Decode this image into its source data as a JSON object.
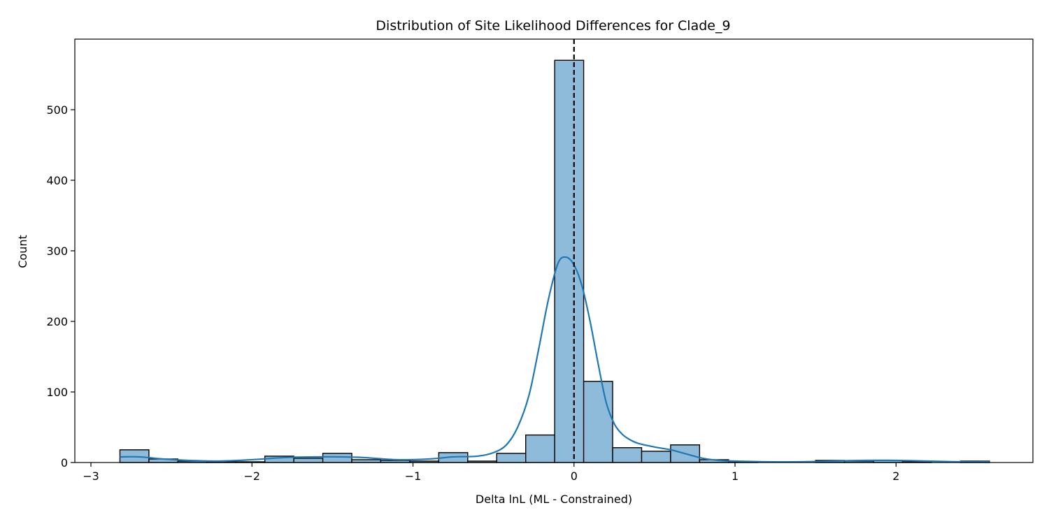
{
  "chart_data": {
    "type": "histogram",
    "title": "Distribution of Site Likelihood Differences for Clade_9",
    "xlabel": "Delta lnL (ML - Constrained)",
    "ylabel": "Count",
    "xlim": [
      -3.1,
      2.85
    ],
    "ylim": [
      0,
      600
    ],
    "xticks": [
      -3,
      -2,
      -1,
      0,
      1,
      2
    ],
    "xtick_labels": [
      "−3",
      "−2",
      "−1",
      "0",
      "1",
      "2"
    ],
    "yticks": [
      0,
      100,
      200,
      300,
      400,
      500
    ],
    "yticks_labels": [
      "0",
      "100",
      "200",
      "300",
      "400",
      "500"
    ],
    "grid": false,
    "bar_color": "#8fbbda",
    "bar_edge_color": "#000000",
    "kde_color": "#1f77b4",
    "reference_line": {
      "x": 0,
      "style": "dashed",
      "color": "#000000"
    },
    "bins": [
      {
        "x0": -2.82,
        "x1": -2.64,
        "count": 18
      },
      {
        "x0": -2.64,
        "x1": -2.46,
        "count": 5
      },
      {
        "x0": -2.46,
        "x1": -2.28,
        "count": 2
      },
      {
        "x0": -2.28,
        "x1": -2.1,
        "count": 1
      },
      {
        "x0": -2.1,
        "x1": -1.92,
        "count": 1
      },
      {
        "x0": -1.92,
        "x1": -1.74,
        "count": 9
      },
      {
        "x0": -1.74,
        "x1": -1.56,
        "count": 6
      },
      {
        "x0": -1.56,
        "x1": -1.38,
        "count": 13
      },
      {
        "x0": -1.38,
        "x1": -1.2,
        "count": 4
      },
      {
        "x0": -1.2,
        "x1": -1.02,
        "count": 3
      },
      {
        "x0": -1.02,
        "x1": -0.84,
        "count": 2
      },
      {
        "x0": -0.84,
        "x1": -0.66,
        "count": 14
      },
      {
        "x0": -0.66,
        "x1": -0.48,
        "count": 2
      },
      {
        "x0": -0.48,
        "x1": -0.3,
        "count": 13
      },
      {
        "x0": -0.3,
        "x1": -0.12,
        "count": 39
      },
      {
        "x0": -0.12,
        "x1": 0.06,
        "count": 570
      },
      {
        "x0": 0.06,
        "x1": 0.24,
        "count": 115
      },
      {
        "x0": 0.24,
        "x1": 0.42,
        "count": 21
      },
      {
        "x0": 0.42,
        "x1": 0.6,
        "count": 16
      },
      {
        "x0": 0.6,
        "x1": 0.78,
        "count": 25
      },
      {
        "x0": 0.78,
        "x1": 0.96,
        "count": 4
      },
      {
        "x0": 0.96,
        "x1": 1.14,
        "count": 1
      },
      {
        "x0": 1.14,
        "x1": 1.32,
        "count": 0
      },
      {
        "x0": 1.32,
        "x1": 1.5,
        "count": 0
      },
      {
        "x0": 1.5,
        "x1": 1.68,
        "count": 3
      },
      {
        "x0": 1.68,
        "x1": 1.86,
        "count": 2
      },
      {
        "x0": 1.86,
        "x1": 2.04,
        "count": 3
      },
      {
        "x0": 2.04,
        "x1": 2.22,
        "count": 1
      },
      {
        "x0": 2.22,
        "x1": 2.4,
        "count": 0
      },
      {
        "x0": 2.4,
        "x1": 2.58,
        "count": 2
      }
    ],
    "kde": {
      "x": [
        -2.82,
        -2.7,
        -2.55,
        -2.4,
        -2.2,
        -2.0,
        -1.8,
        -1.6,
        -1.45,
        -1.3,
        -1.1,
        -0.9,
        -0.75,
        -0.6,
        -0.5,
        -0.42,
        -0.35,
        -0.28,
        -0.22,
        -0.16,
        -0.1,
        -0.05,
        0.0,
        0.05,
        0.1,
        0.15,
        0.2,
        0.25,
        0.3,
        0.35,
        0.4,
        0.5,
        0.6,
        0.7,
        0.8,
        0.9,
        1.0,
        1.2,
        1.4,
        1.6,
        1.8,
        2.0,
        2.2,
        2.4,
        2.58
      ],
      "y": [
        8,
        8,
        5,
        3,
        2,
        4,
        7,
        8,
        8,
        7,
        4,
        5,
        8,
        9,
        14,
        25,
        50,
        95,
        160,
        230,
        282,
        291,
        280,
        250,
        200,
        140,
        85,
        55,
        40,
        32,
        27,
        22,
        18,
        12,
        6,
        3,
        2,
        1,
        1,
        2,
        3,
        3,
        2,
        1,
        1
      ]
    }
  }
}
